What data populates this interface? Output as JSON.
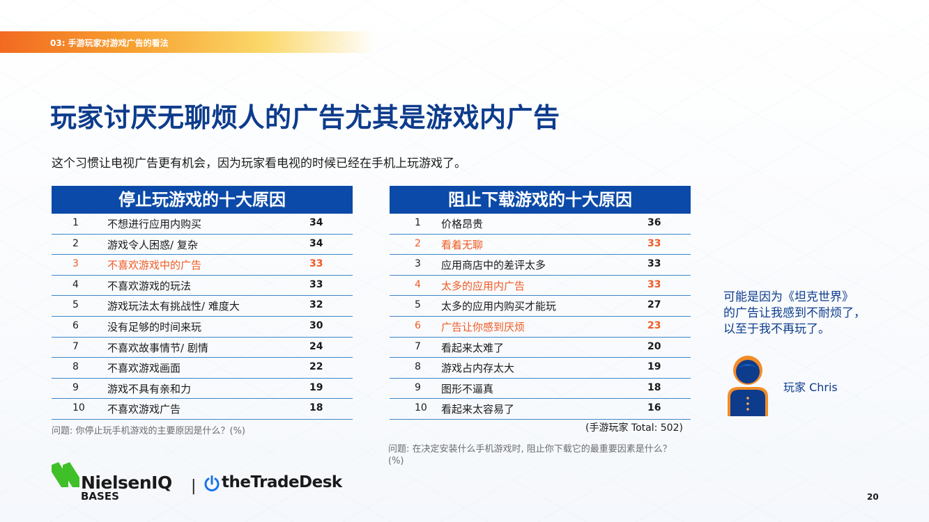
{
  "section": {
    "label": "03: 手游玩家对游戏广告的看法"
  },
  "title": "玩家讨厌无聊烦人的广告尤其是游戏内广告",
  "subtitle": "这个习惯让电视广告更有机会，因为玩家看电视的时候已经在手机上玩游戏了。",
  "left_table": {
    "header": "停止玩游戏的十大原因",
    "rows": [
      {
        "rank": "1",
        "label": "不想进行应用内购买",
        "value": "34"
      },
      {
        "rank": "2",
        "label": "游戏令人困惑/ 复杂",
        "value": "34"
      },
      {
        "rank": "3",
        "label": "不喜欢游戏中的广告",
        "value": "33"
      },
      {
        "rank": "4",
        "label": "不喜欢游戏的玩法",
        "value": "33"
      },
      {
        "rank": "5",
        "label": "游戏玩法太有挑战性/ 难度大",
        "value": "32"
      },
      {
        "rank": "6",
        "label": "没有足够的时间来玩",
        "value": "30"
      },
      {
        "rank": "7",
        "label": "不喜欢故事情节/ 剧情",
        "value": "24"
      },
      {
        "rank": "8",
        "label": "不喜欢游戏画面",
        "value": "22"
      },
      {
        "rank": "9",
        "label": "游戏不具有亲和力",
        "value": "19"
      },
      {
        "rank": "10",
        "label": "不喜欢游戏广告",
        "value": "18"
      }
    ],
    "note": "问题: 你停止玩手机游戏的主要原因是什么？(%)"
  },
  "right_table": {
    "header": "阻止下载游戏的十大原因",
    "rows": [
      {
        "rank": "1",
        "label": "价格昂贵",
        "value": "36"
      },
      {
        "rank": "2",
        "label": "看着无聊",
        "value": "33"
      },
      {
        "rank": "3",
        "label": "应用商店中的差评太多",
        "value": "33"
      },
      {
        "rank": "4",
        "label": "太多的应用内广告",
        "value": "33"
      },
      {
        "rank": "5",
        "label": "太多的应用内购买才能玩",
        "value": "27"
      },
      {
        "rank": "6",
        "label": "广告让你感到厌烦",
        "value": "23"
      },
      {
        "rank": "7",
        "label": "看起来太难了",
        "value": "20"
      },
      {
        "rank": "8",
        "label": "游戏占内存太大",
        "value": "19"
      },
      {
        "rank": "9",
        "label": "图形不逼真",
        "value": "18"
      },
      {
        "rank": "10",
        "label": "看起来太容易了",
        "value": "16"
      }
    ],
    "total": "(手游玩家 Total: 502)",
    "note": "问题: 在决定安装什么手机游戏时, 阻止你下载它的最重要因素是什么？(%)"
  },
  "quote": {
    "lines": [
      "可能是因为《坦克世界》",
      "的广告让我感到不耐烦了，",
      "以至于我不再玩了。"
    ],
    "speaker": "玩家 Chris"
  },
  "logos": {
    "brand1": "NielsenIQ",
    "brand1_sub": "BASES",
    "separator": "|",
    "brand2": "theTradeDesk"
  },
  "page_number": "20",
  "colors": {
    "title": "#0d3c8c",
    "header_bg": "#0b4aa8",
    "highlight": "#f05a22",
    "row_rule": "#3c86c8"
  }
}
